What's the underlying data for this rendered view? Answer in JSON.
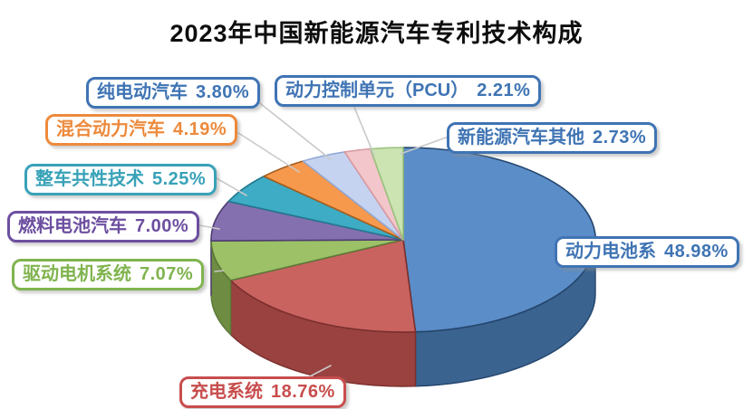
{
  "title": "2023年中国新能源汽车专利技术构成",
  "chart_data": {
    "type": "pie",
    "style": "3d",
    "title": "2023年中国新能源汽车专利技术构成",
    "unit": "%",
    "direction": "clockwise",
    "start_angle_deg": 0,
    "legend_position": "callout-labels",
    "background": "#ffffff",
    "leader_line_color": "#c9c9c9",
    "slices": [
      {
        "label": "动力电池系",
        "value": 48.98,
        "value_display": "48.98%",
        "fill": "#5B8DC8",
        "side": "#3A638F",
        "outline": "#24456C",
        "callout_color": "#3F74B4"
      },
      {
        "label": "充电系统",
        "value": 18.76,
        "value_display": "18.76%",
        "fill": "#C96360",
        "side": "#9A4240",
        "outline": "#7B2F2D",
        "callout_color": "#C84D4D"
      },
      {
        "label": "驱动电机系统",
        "value": 7.07,
        "value_display": "7.07%",
        "fill": "#9CC167",
        "side": "#6E8C42",
        "outline": "#5D7838",
        "callout_color": "#80B44F"
      },
      {
        "label": "燃料电池汽车",
        "value": 7.0,
        "value_display": "7.00%",
        "fill": "#8570AF",
        "side": "#5E4A86",
        "outline": "#4E3C72",
        "callout_color": "#6D4FA0"
      },
      {
        "label": "整车共性技术",
        "value": 5.25,
        "value_display": "5.25%",
        "fill": "#3EACC4",
        "side": "#2B7A8C",
        "outline": "#21788F",
        "callout_color": "#38A2B8"
      },
      {
        "label": "混合动力汽车",
        "value": 4.19,
        "value_display": "4.19%",
        "fill": "#F7994C",
        "side": "#B56A2B",
        "outline": "#A35D1E",
        "callout_color": "#ED8A3C"
      },
      {
        "label": "纯电动汽车",
        "value": 3.8,
        "value_display": "3.80%",
        "fill": "#C6D3F0",
        "side": "#8FA3C8",
        "outline": "#93A9D6",
        "callout_color": "#3F74B4"
      },
      {
        "label": "动力控制单元（PCU）",
        "value": 2.21,
        "value_display": "2.21%",
        "fill": "#F2C6CA",
        "side": "#C59499",
        "outline": "#D898A0",
        "callout_color": "#3F74B4"
      },
      {
        "label": "新能源汽车其他",
        "value": 2.73,
        "value_display": "2.73%",
        "fill": "#CBE4B2",
        "side": "#97B184",
        "outline": "#99C27C",
        "callout_color": "#3F74B4"
      }
    ]
  }
}
